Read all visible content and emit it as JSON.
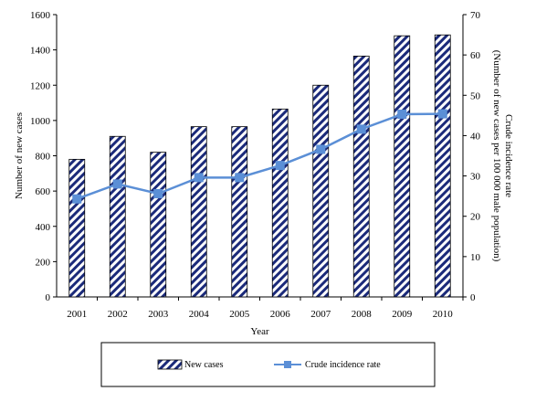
{
  "chart_data": {
    "type": "bar",
    "categories": [
      "2001",
      "2002",
      "2003",
      "2004",
      "2005",
      "2006",
      "2007",
      "2008",
      "2009",
      "2010"
    ],
    "series": [
      {
        "name": "New cases",
        "type": "bar",
        "axis": "left",
        "values": [
          780,
          910,
          820,
          965,
          965,
          1065,
          1200,
          1365,
          1480,
          1485
        ]
      },
      {
        "name": "Crude incidence rate",
        "type": "line",
        "axis": "right",
        "values": [
          24.3,
          28.0,
          25.6,
          29.6,
          29.6,
          32.6,
          36.6,
          41.6,
          45.3,
          45.4
        ]
      }
    ],
    "xlabel": "Year",
    "ylabel": "Number of new cases",
    "y2label_line1": "Crude incidence  rate",
    "y2label_line2": "(Number of new cases per 100 000 male population)",
    "ylim": [
      0,
      1600
    ],
    "y_ticks": [
      "0",
      "200",
      "400",
      "600",
      "800",
      "1000",
      "1200",
      "1400",
      "1600"
    ],
    "y2lim": [
      0,
      70
    ],
    "y2_ticks": [
      "0",
      "10",
      "20",
      "30",
      "40",
      "50",
      "60",
      "70"
    ],
    "grid": false,
    "legend": "bottom",
    "colors": {
      "bar_pattern": "#1b2a7a",
      "line": "#5b8fd6",
      "marker": "#5b8fd6"
    }
  }
}
